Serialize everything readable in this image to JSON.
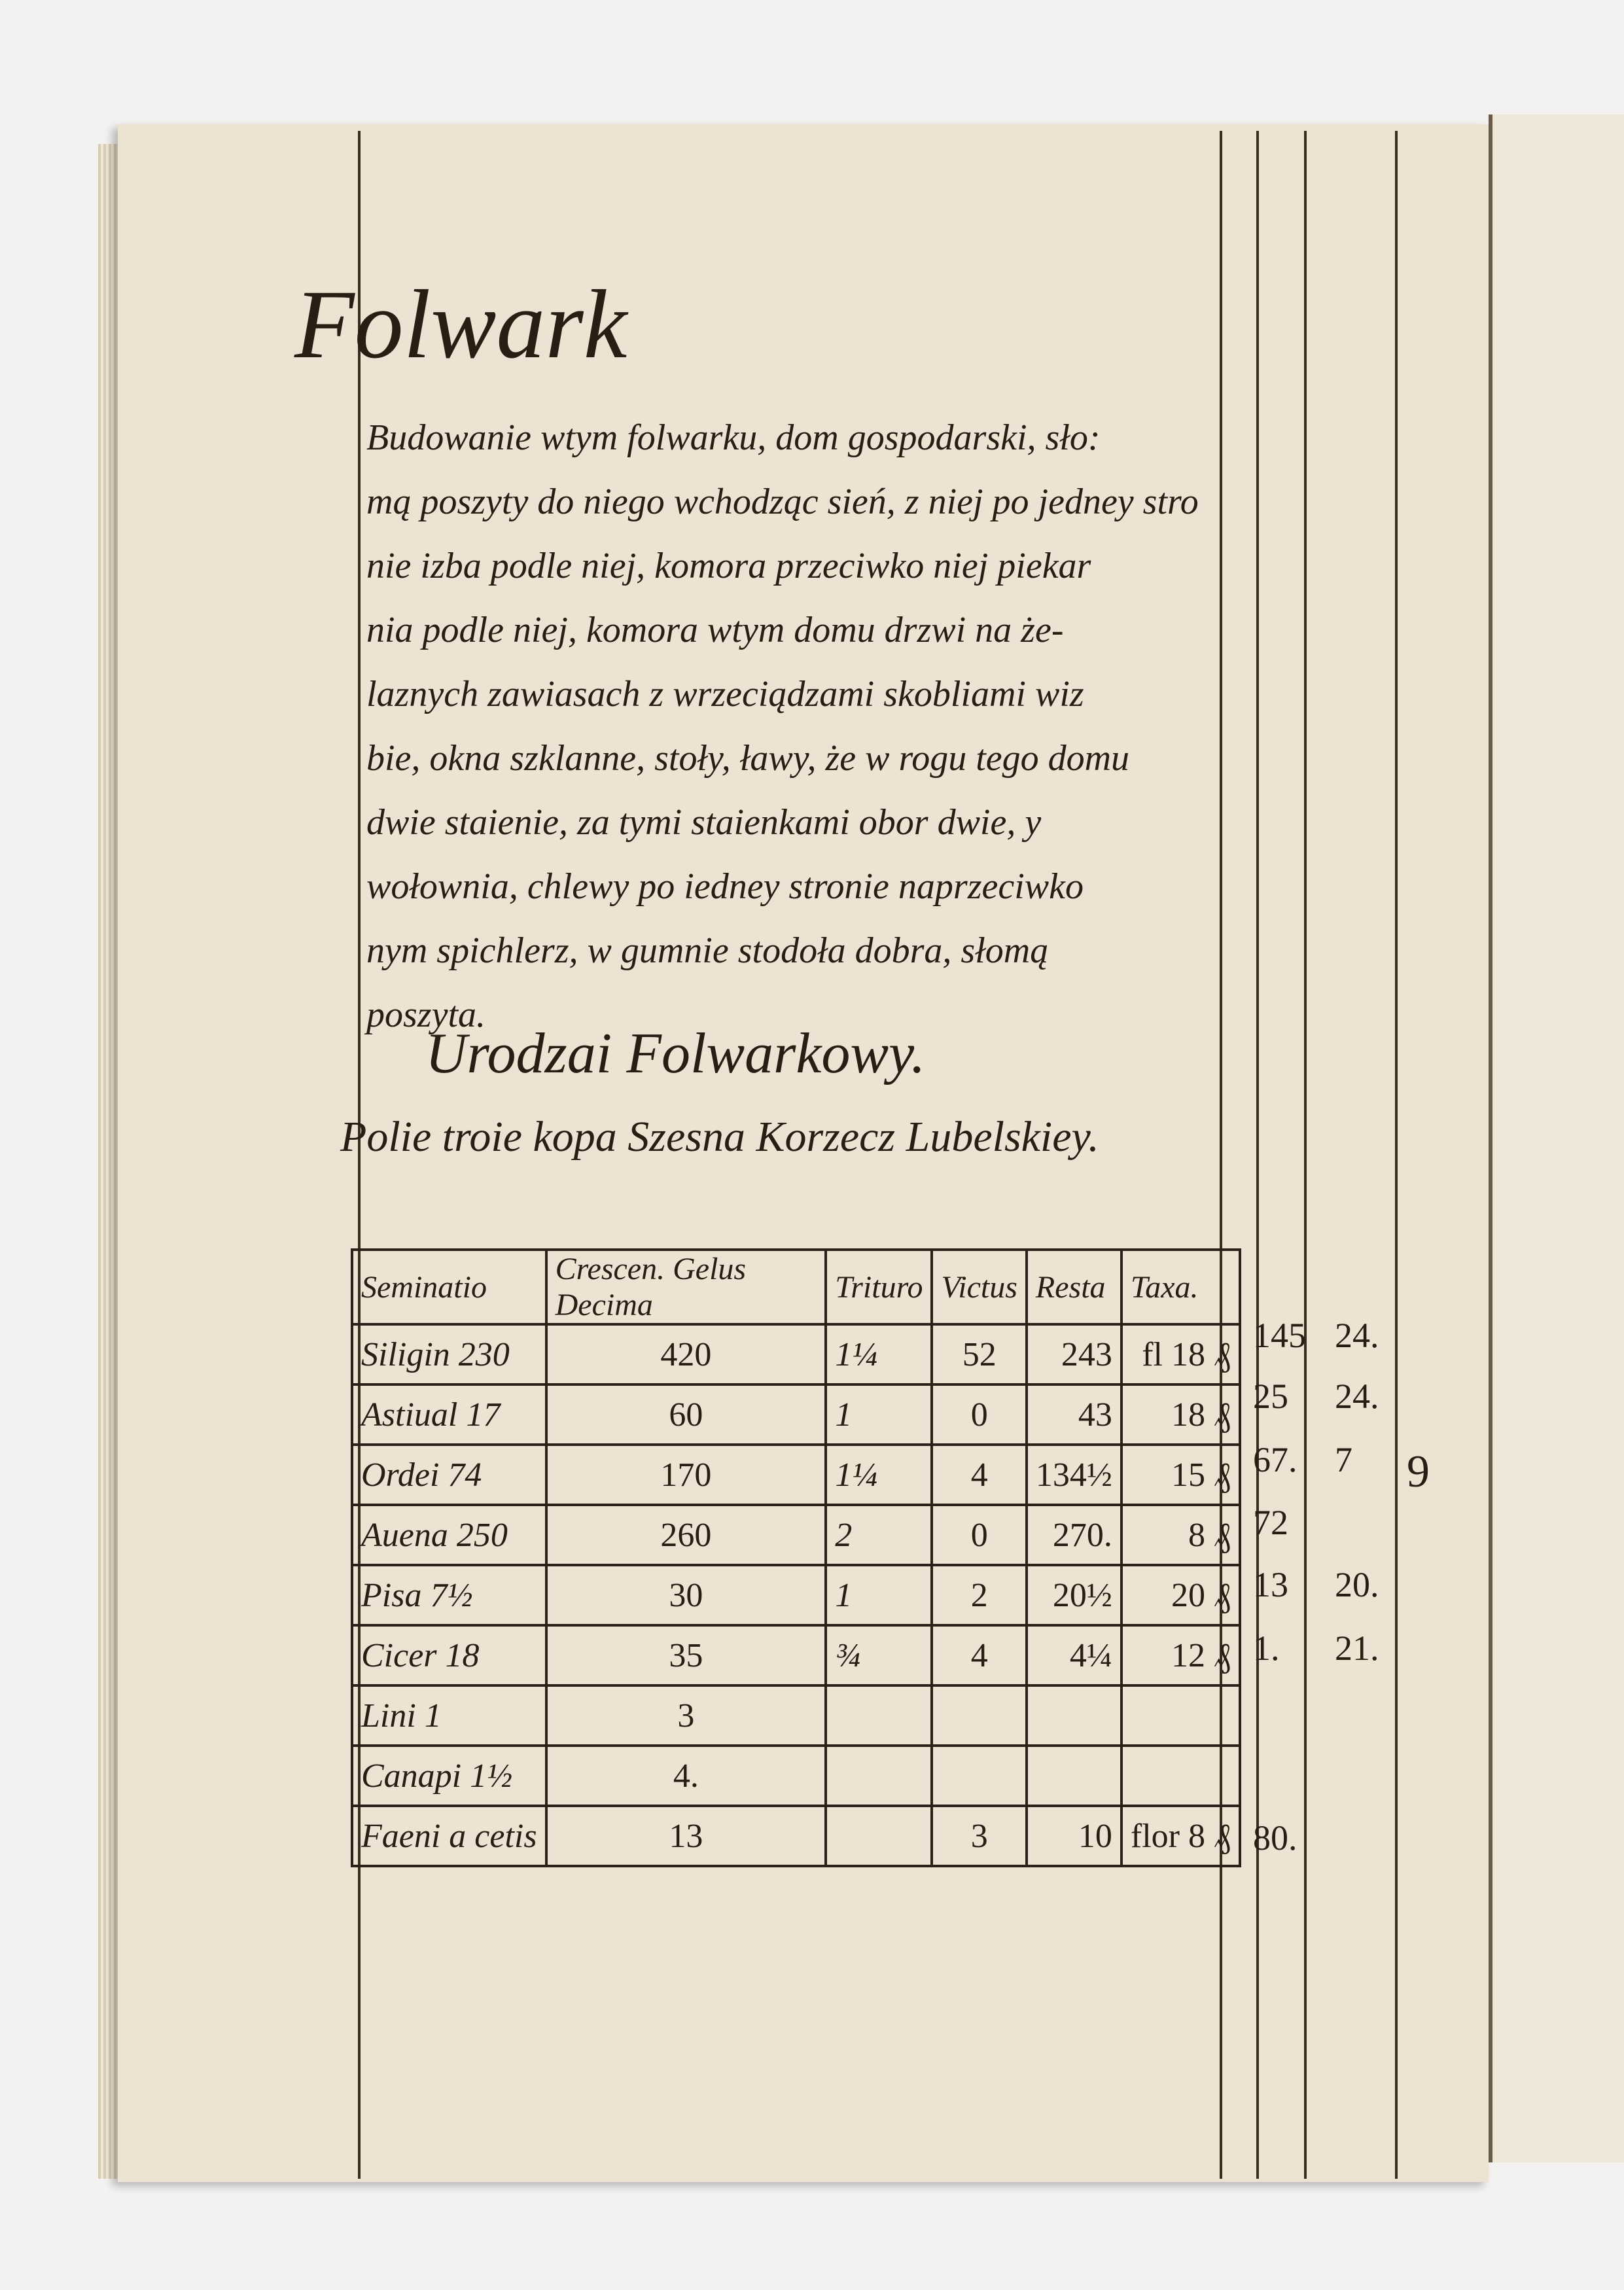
{
  "title": "Folwark",
  "paragraph": [
    "Budowanie wtym folwarku, dom gospodarski, sło:",
    "mą poszyty do niego wchodząc sień, z niej po jedney stro",
    "nie izba podle niej, komora przeciwko niej piekar",
    "nia podle niej, komora wtym domu drzwi na że-",
    "laznych zawiasach z wrzeciądzami skobliami wiz",
    "bie, okna szklanne, stoły, ławy, że w rogu tego domu",
    "dwie staienie, za tymi staienkami obor dwie, y",
    "wołownia, chlewy po iedney stronie naprzeciwko",
    "nym spichlerz, w gumnie stodoła dobra, słomą",
    "poszyta."
  ],
  "subtitle": "Urodzai Folwarkowy.",
  "fields_line": "Polie troie kopa Szesna Korzecz Lubelskiey.",
  "table": {
    "headers": [
      "Seminatio",
      "Crescen. Gelus Decima",
      "Trituro",
      "Victus",
      "Resta",
      "Taxa."
    ],
    "rows": [
      [
        "Siligin 230",
        "420",
        "1¼",
        "52",
        "243",
        "fl 18 ₰"
      ],
      [
        "Astiual 17",
        "60",
        "1",
        "0",
        "43",
        "18 ₰"
      ],
      [
        "Ordei 74",
        "170",
        "1¼",
        "4",
        "134½",
        "15 ₰"
      ],
      [
        "Auena 250",
        "260",
        "2",
        "0",
        "270.",
        "8 ₰"
      ],
      [
        "Pisa 7½",
        "30",
        "1",
        "2",
        "20½",
        "20 ₰"
      ],
      [
        "Cicer 18",
        "35",
        "¾",
        "4",
        "4¼",
        "12 ₰"
      ],
      [
        "Lini 1",
        "3",
        "",
        "",
        "",
        ""
      ],
      [
        "Canapi 1½",
        "4.",
        "",
        "",
        "",
        ""
      ],
      [
        "Faeni a cetis",
        "13",
        "",
        "3",
        "10",
        "flor 8 ₰"
      ]
    ]
  },
  "margin_totals": [
    [
      "145",
      "24."
    ],
    [
      "25",
      "24."
    ],
    [
      "67.",
      "7"
    ],
    [
      "72",
      ""
    ],
    [
      "13",
      "20."
    ],
    [
      "1.",
      "21."
    ],
    [
      "",
      ""
    ],
    [
      "",
      ""
    ],
    [
      "80.",
      ""
    ]
  ],
  "margin_extra": "9"
}
